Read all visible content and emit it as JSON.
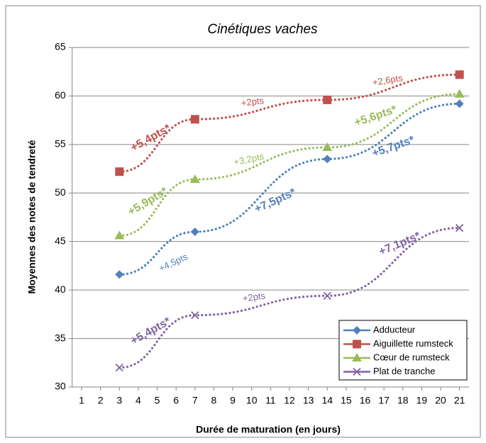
{
  "chart_data": {
    "type": "line",
    "title": "Cinétiques vaches",
    "y_label": "Moyennes des notes de tendreté",
    "x_label": "Durée de maturation (en jours)",
    "x": [
      3,
      7,
      14,
      21
    ],
    "xlim": [
      0.5,
      21.5
    ],
    "xticks": [
      1,
      2,
      3,
      4,
      5,
      6,
      7,
      8,
      9,
      10,
      11,
      12,
      13,
      14,
      15,
      16,
      17,
      18,
      19,
      20,
      21
    ],
    "ylim": [
      30,
      65
    ],
    "yticks": [
      30,
      35,
      40,
      45,
      50,
      55,
      60,
      65
    ],
    "grid": true,
    "legend": "lower right",
    "series": [
      {
        "name": "Adducteur",
        "color": "#4f81bd",
        "marker": "diamond",
        "values": [
          41.6,
          46.0,
          53.5,
          59.2
        ],
        "annotations": [
          "+4,5pts",
          "+7,5pts*",
          "+5,7pts*"
        ]
      },
      {
        "name": "Aiguillette rumsteck",
        "color": "#c0504d",
        "marker": "square",
        "values": [
          52.2,
          57.6,
          59.6,
          62.2
        ],
        "annotations": [
          "+5,4pts*",
          "+2pts",
          "+2,6pts"
        ]
      },
      {
        "name": "Cœur de rumsteck",
        "color": "#9bbb59",
        "marker": "triangle",
        "values": [
          45.6,
          51.4,
          54.7,
          60.2
        ],
        "annotations": [
          "+5,9pts*",
          "+3,2pts",
          "+5,6pts*"
        ]
      },
      {
        "name": "Plat de tranche",
        "color": "#8064a2",
        "marker": "x",
        "values": [
          32.0,
          37.4,
          39.4,
          46.4
        ],
        "annotations": [
          "+5,4pts*",
          "+2pts",
          "+7,1pts*"
        ]
      }
    ]
  }
}
